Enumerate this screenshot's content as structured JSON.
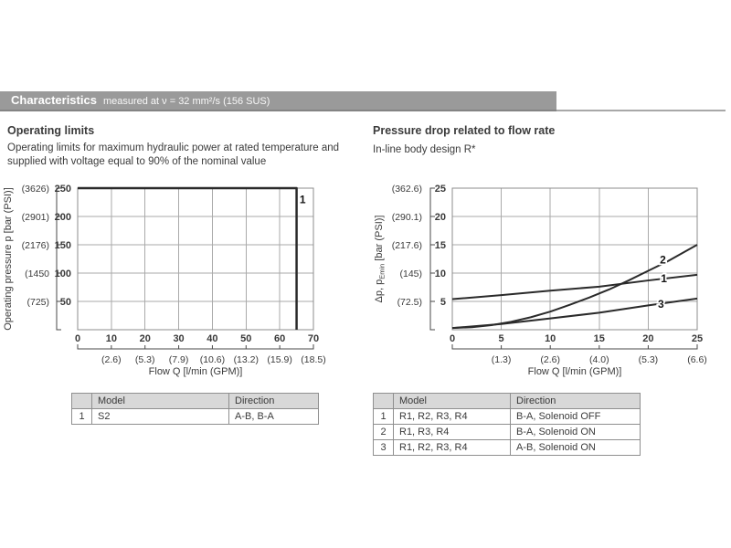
{
  "header_bar": {
    "title": "Characteristics",
    "subtitle": "measured at ν = 32 mm²/s (156 SUS)",
    "bar_color": "#9a9a9a"
  },
  "left_section": {
    "heading": "Operating limits",
    "description": "Operating limits for maximum hydraulic power at rated temperature and supplied with voltage equal to 90% of the nominal value",
    "table": {
      "headers": [
        "",
        "Model",
        "Direction"
      ],
      "rows": [
        [
          "1",
          "S2",
          "A-B, B-A"
        ]
      ]
    }
  },
  "right_section": {
    "heading": "Pressure drop related to flow rate",
    "subheading": "In-line body design R*",
    "table": {
      "headers": [
        "",
        "Model",
        "Direction"
      ],
      "rows": [
        [
          "1",
          "R1, R2, R3, R4",
          "B-A, Solenoid OFF"
        ],
        [
          "2",
          "R1, R3, R4",
          "B-A, Solenoid ON"
        ],
        [
          "3",
          "R1, R2, R3, R4",
          "A-B, Solenoid ON"
        ]
      ]
    }
  },
  "chart_data": [
    {
      "id": "chart-left",
      "type": "line",
      "title": "Operating limits",
      "xlabel": "Flow Q [l/min (GPM)]",
      "ylabel": {
        "pre": "Operating pressure p [bar (PSI)]",
        "sub": "",
        "post": ""
      },
      "xlim": [
        0,
        70
      ],
      "ylim": [
        0,
        250
      ],
      "grid": true,
      "legend": "table below, numbered curve",
      "x_ticks": [
        {
          "v": 0,
          "label": "0",
          "alt": ""
        },
        {
          "v": 10,
          "label": "10",
          "alt": "(2.6)"
        },
        {
          "v": 20,
          "label": "20",
          "alt": "(5.3)"
        },
        {
          "v": 30,
          "label": "30",
          "alt": "(7.9)"
        },
        {
          "v": 40,
          "label": "40",
          "alt": "(10.6)"
        },
        {
          "v": 50,
          "label": "50",
          "alt": "(13.2)"
        },
        {
          "v": 60,
          "label": "60",
          "alt": "(15.9)"
        },
        {
          "v": 70,
          "label": "70",
          "alt": "(18.5)"
        }
      ],
      "y_ticks": [
        {
          "v": 250,
          "label": "250",
          "alt": "(3626)"
        },
        {
          "v": 200,
          "label": "200",
          "alt": "(2901)"
        },
        {
          "v": 150,
          "label": "150",
          "alt": "(2176)"
        },
        {
          "v": 100,
          "label": "100",
          "alt": "(1450"
        },
        {
          "v": 50,
          "label": "50",
          "alt": "(725)"
        }
      ],
      "series": [
        {
          "name": "1",
          "points": [
            [
              0,
              250
            ],
            [
              65,
              250
            ],
            [
              65,
              0
            ]
          ]
        }
      ]
    },
    {
      "id": "chart-right",
      "type": "line",
      "title": "Pressure drop related to flow rate",
      "xlabel": "Flow Q [l/min (GPM)]",
      "ylabel": {
        "pre": "Δp, p",
        "sub": "Emin",
        "post": " [bar (PSI)]"
      },
      "xlim": [
        0,
        25
      ],
      "ylim": [
        0,
        25
      ],
      "grid": true,
      "legend": "table below, numbered curves",
      "x_ticks": [
        {
          "v": 0,
          "label": "0",
          "alt": ""
        },
        {
          "v": 5,
          "label": "5",
          "alt": "(1.3)"
        },
        {
          "v": 10,
          "label": "10",
          "alt": "(2.6)"
        },
        {
          "v": 15,
          "label": "15",
          "alt": "(4.0)"
        },
        {
          "v": 20,
          "label": "20",
          "alt": "(5.3)"
        },
        {
          "v": 25,
          "label": "25",
          "alt": "(6.6)"
        }
      ],
      "y_ticks": [
        {
          "v": 25,
          "label": "25",
          "alt": "(362.6)"
        },
        {
          "v": 20,
          "label": "20",
          "alt": "(290.1)"
        },
        {
          "v": 15,
          "label": "15",
          "alt": "(217.6)"
        },
        {
          "v": 10,
          "label": "10",
          "alt": "(145)"
        },
        {
          "v": 5,
          "label": "5",
          "alt": "(72.5)"
        }
      ],
      "series": [
        {
          "name": "1",
          "points": [
            [
              0,
              5.4
            ],
            [
              5,
              6.1
            ],
            [
              10,
              6.9
            ],
            [
              15,
              7.6
            ],
            [
              20,
              8.7
            ],
            [
              25,
              9.7
            ]
          ]
        },
        {
          "name": "2",
          "points": [
            [
              0,
              0.3
            ],
            [
              2,
              0.45
            ],
            [
              4,
              0.8
            ],
            [
              6,
              1.4
            ],
            [
              8,
              2.2
            ],
            [
              10,
              3.2
            ],
            [
              12,
              4.4
            ],
            [
              14,
              5.7
            ],
            [
              16,
              7.1
            ],
            [
              18,
              8.7
            ],
            [
              20,
              10.4
            ],
            [
              22,
              12.1
            ],
            [
              25,
              15
            ]
          ]
        },
        {
          "name": "3",
          "points": [
            [
              0,
              0.3
            ],
            [
              5,
              1.0
            ],
            [
              10,
              2.0
            ],
            [
              15,
              3.0
            ],
            [
              20,
              4.3
            ],
            [
              25,
              5.5
            ]
          ]
        }
      ]
    }
  ]
}
